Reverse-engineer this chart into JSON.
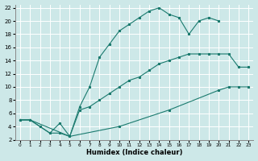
{
  "xlabel": "Humidex (Indice chaleur)",
  "background_color": "#cde8e8",
  "grid_color": "#ffffff",
  "line_color": "#1a7a6e",
  "xlim": [
    -0.5,
    23.5
  ],
  "ylim": [
    2,
    22.5
  ],
  "xticks": [
    0,
    1,
    2,
    3,
    4,
    5,
    6,
    7,
    8,
    9,
    10,
    11,
    12,
    13,
    14,
    15,
    16,
    17,
    18,
    19,
    20,
    21,
    22,
    23
  ],
  "yticks": [
    2,
    4,
    6,
    8,
    10,
    12,
    14,
    16,
    18,
    20,
    22
  ],
  "s1_x": [
    0,
    1,
    2,
    3,
    4,
    5,
    6,
    7,
    8,
    9,
    10,
    11,
    12,
    13,
    14,
    15,
    16,
    17,
    18,
    19,
    20
  ],
  "s1_y": [
    5,
    5,
    4,
    3,
    4.5,
    2.5,
    7,
    10,
    14.5,
    16.5,
    18.5,
    19.5,
    20.5,
    21.5,
    22,
    21,
    20.5,
    18,
    20,
    20.5,
    20
  ],
  "s2_x": [
    0,
    1,
    2,
    3,
    4,
    5,
    6,
    7,
    8,
    9,
    10,
    11,
    12,
    13,
    14,
    15,
    16,
    17,
    18,
    19,
    20,
    21,
    22,
    23
  ],
  "s2_y": [
    5,
    5,
    4,
    3,
    3,
    2.5,
    6.5,
    7,
    8,
    9,
    10,
    11,
    11.5,
    12.5,
    13.5,
    14,
    14.5,
    15,
    15,
    15,
    15,
    15,
    13,
    13
  ],
  "s3_x": [
    0,
    1,
    5,
    10,
    15,
    20,
    21,
    22,
    23
  ],
  "s3_y": [
    5,
    5,
    2.5,
    4,
    6.5,
    9.5,
    10,
    10,
    10
  ]
}
